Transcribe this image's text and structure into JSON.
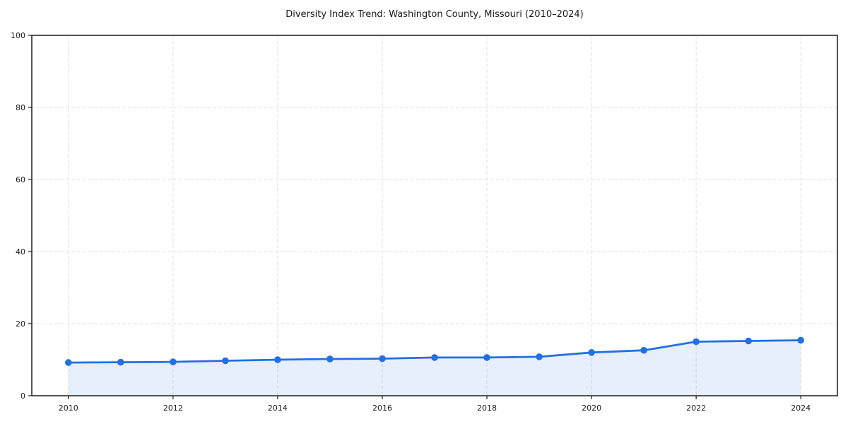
{
  "page": {
    "background": "#ffffff"
  },
  "chart_data": {
    "type": "line",
    "title": "Diversity Index Trend: Washington County, Missouri (2010–2024)",
    "x": [
      2010,
      2011,
      2012,
      2013,
      2014,
      2015,
      2016,
      2017,
      2018,
      2019,
      2020,
      2021,
      2022,
      2023,
      2024
    ],
    "series": [
      {
        "name": "Diversity Index",
        "values": [
          9.2,
          9.3,
          9.4,
          9.7,
          10.0,
          10.2,
          10.3,
          10.6,
          10.6,
          10.8,
          12.0,
          12.6,
          15.0,
          15.2,
          15.4
        ]
      }
    ],
    "xlabel": "",
    "ylabel": "",
    "xlim": [
      2009.3,
      2024.7
    ],
    "ylim": [
      0,
      100
    ],
    "xticks": [
      2010,
      2012,
      2014,
      2016,
      2018,
      2020,
      2022,
      2024
    ],
    "yticks": [
      0,
      20,
      40,
      60,
      80,
      100
    ],
    "grid": true,
    "grid_style": "dashed",
    "legend": "none",
    "marker": "circle",
    "area_fill": true,
    "colors": {
      "line": "#2170e4",
      "marker": "#2170e4",
      "area": "#2170e4",
      "area_opacity": 0.11,
      "grid": "#e0e0e0",
      "spine": "#1a1a1a",
      "text": "#1a1a1a"
    }
  }
}
